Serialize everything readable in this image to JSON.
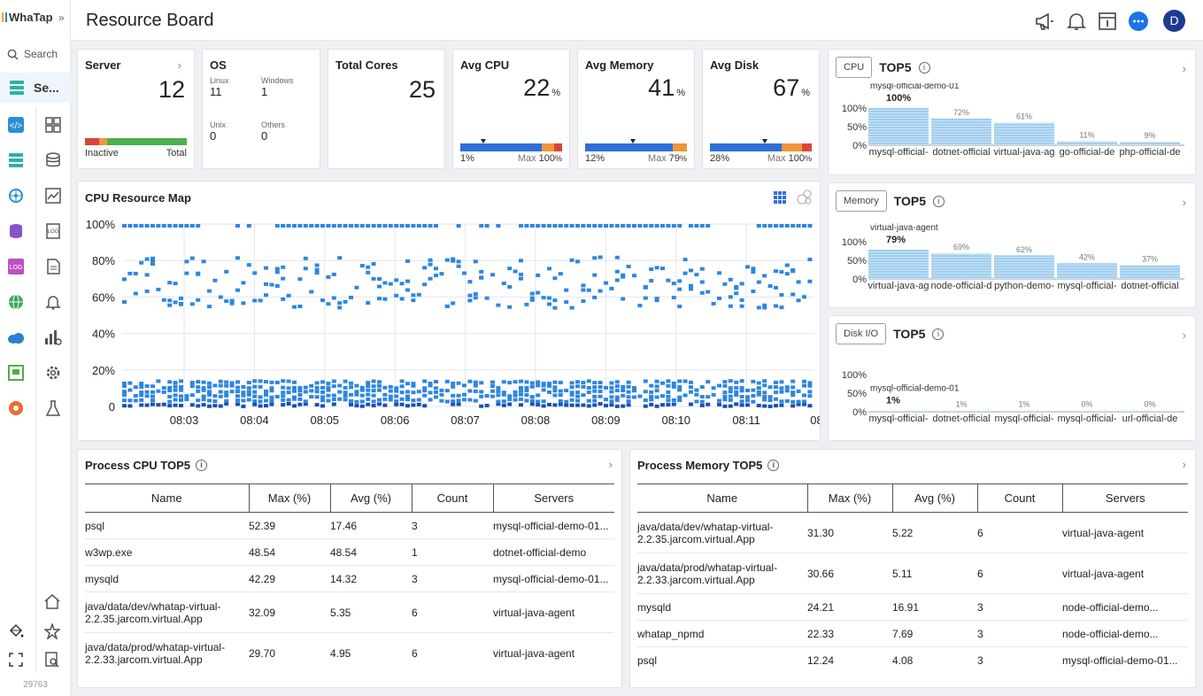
{
  "app": {
    "brand": "WhaTap",
    "version": "29763"
  },
  "header": {
    "title": "Resource Board",
    "avatar": "D"
  },
  "sidebar": {
    "search_label": "Search",
    "selected_label": "Se...",
    "rail_icons": [
      "code-icon",
      "server-icon",
      "kubernetes-icon",
      "database-icon",
      "log-icon",
      "globe-icon",
      "cloud-icon",
      "dashboard-icon",
      "broadcast-icon"
    ],
    "sub_icons": [
      "grid-icon",
      "db-icon",
      "chart-icon",
      "log-doc-icon",
      "document-icon",
      "bell-icon",
      "bar-settings-icon",
      "gear-icon",
      "flask-icon"
    ],
    "bottom_icons": [
      "paint-bucket-icon",
      "expand-icon",
      "home-icon",
      "star-icon",
      "search-doc-icon"
    ]
  },
  "summary": {
    "server": {
      "title": "Server",
      "value": "12",
      "left": "Inactive",
      "right": "Total"
    },
    "os": {
      "title": "OS",
      "linux_k": "Linux",
      "linux_v": "11",
      "windows_k": "Windows",
      "windows_v": "1",
      "unix_k": "Unix",
      "unix_v": "0",
      "others_k": "Others",
      "others_v": "0"
    },
    "cores": {
      "title": "Total Cores",
      "value": "25"
    },
    "cpu": {
      "title": "Avg CPU",
      "value": "22",
      "unit": "%",
      "min": "1%",
      "max_label": "Max",
      "max": "100",
      "max_unit": "%",
      "avg": 22
    },
    "memory": {
      "title": "Avg Memory",
      "value": "41",
      "unit": "%",
      "min": "12%",
      "max_label": "Max",
      "max": "79",
      "max_unit": "%",
      "avg": 41
    },
    "disk": {
      "title": "Avg Disk",
      "value": "67",
      "unit": "%",
      "min": "28%",
      "max_label": "Max",
      "max": "100",
      "max_unit": "%",
      "avg": 67
    }
  },
  "colors": {
    "accent": "#1a73e8",
    "blue": "#2e6fd8",
    "orange": "#f0953a",
    "red": "#d9453b",
    "green": "#4caf50",
    "bar_light": "#a8d1f0"
  },
  "map": {
    "title": "CPU Resource Map",
    "y_ticks": [
      "100%",
      "80%",
      "60%",
      "40%",
      "20%",
      "0"
    ],
    "x_ticks": [
      "08:03",
      "08:04",
      "08:05",
      "08:06",
      "08:07",
      "08:08",
      "08:09",
      "08:10",
      "08:11",
      "08"
    ]
  },
  "top5": {
    "cpu": {
      "pill": "CPU",
      "title": "TOP5",
      "y_ticks": [
        "100%",
        "50%",
        "0%"
      ],
      "top_name": "mysql-official-demo-01",
      "top_value": "100%",
      "labels": [
        "mysql-official-",
        "dotnet-official",
        "virtual-java-ag",
        "go-official-de",
        "php-official-de"
      ],
      "values": [
        100,
        72,
        61,
        11,
        9
      ],
      "value_labels": [
        "100%",
        "72%",
        "61%",
        "11%",
        "9%"
      ]
    },
    "memory": {
      "pill": "Memory",
      "title": "TOP5",
      "y_ticks": [
        "100%",
        "50%",
        "0%"
      ],
      "top_name": "virtual-java-agent",
      "top_value": "79%",
      "labels": [
        "virtual-java-ag",
        "node-official-d",
        "python-demo-",
        "mysql-official-",
        "dotnet-official"
      ],
      "values": [
        79,
        69,
        62,
        42,
        37
      ],
      "value_labels": [
        "79%",
        "69%",
        "62%",
        "42%",
        "37%"
      ]
    },
    "disk": {
      "pill": "Disk I/O",
      "title": "TOP5",
      "y_ticks": [
        "100%",
        "50%",
        "0%"
      ],
      "top_name": "mysql-official-demo-01",
      "top_value": "1%",
      "labels": [
        "mysql-official-",
        "dotnet-official",
        "mysql-official-",
        "mysql-official-",
        "url-official-de"
      ],
      "values": [
        1,
        1,
        1,
        0,
        0
      ],
      "value_labels": [
        "1%",
        "1%",
        "1%",
        "0%",
        "0%"
      ]
    }
  },
  "process_cpu": {
    "title": "Process CPU TOP5",
    "columns": [
      "Name",
      "Max (%)",
      "Avg (%)",
      "Count",
      "Servers"
    ],
    "rows": [
      {
        "name": "psql",
        "max": "52.39",
        "avg": "17.46",
        "count": "3",
        "servers": "mysql-official-demo-01..."
      },
      {
        "name": "w3wp.exe",
        "max": "48.54",
        "avg": "48.54",
        "count": "1",
        "servers": "dotnet-official-demo"
      },
      {
        "name": "mysqld",
        "max": "42.29",
        "avg": "14.32",
        "count": "3",
        "servers": "mysql-official-demo-01..."
      },
      {
        "name": "java/data/dev/whatap-virtual-2.2.35.jarcom.virtual.App",
        "max": "32.09",
        "avg": "5.35",
        "count": "6",
        "servers": "virtual-java-agent"
      },
      {
        "name": "java/data/prod/whatap-virtual-2.2.33.jarcom.virtual.App",
        "max": "29.70",
        "avg": "4.95",
        "count": "6",
        "servers": "virtual-java-agent"
      }
    ]
  },
  "process_memory": {
    "title": "Process Memory TOP5",
    "columns": [
      "Name",
      "Max (%)",
      "Avg (%)",
      "Count",
      "Servers"
    ],
    "rows": [
      {
        "name": "java/data/dev/whatap-virtual-2.2.35.jarcom.virtual.App",
        "max": "31.30",
        "avg": "5.22",
        "count": "6",
        "servers": "virtual-java-agent"
      },
      {
        "name": "java/data/prod/whatap-virtual-2.2.33.jarcom.virtual.App",
        "max": "30.66",
        "avg": "5.11",
        "count": "6",
        "servers": "virtual-java-agent"
      },
      {
        "name": "mysqld",
        "max": "24.21",
        "avg": "16.91",
        "count": "3",
        "servers": "node-official-demo..."
      },
      {
        "name": "whatap_npmd",
        "max": "22.33",
        "avg": "7.69",
        "count": "3",
        "servers": "node-official-demo..."
      },
      {
        "name": "psql",
        "max": "12.24",
        "avg": "4.08",
        "count": "3",
        "servers": "mysql-official-demo-01..."
      }
    ]
  }
}
